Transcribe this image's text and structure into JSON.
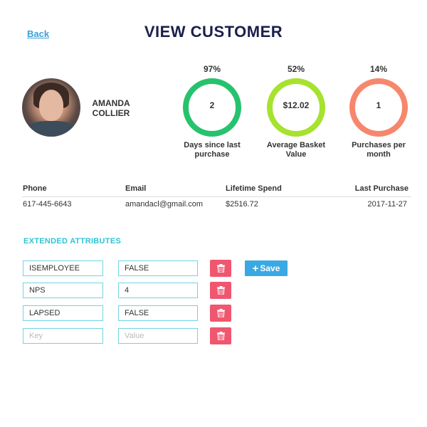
{
  "header": {
    "back_label": "Back",
    "title": "VIEW CUSTOMER"
  },
  "customer": {
    "name": "AMANDA COLLIER"
  },
  "stats": [
    {
      "percent": "97%",
      "value": "2",
      "label": "Days since last purchase",
      "ring_color": "#27c26e"
    },
    {
      "percent": "52%",
      "value": "$12.02",
      "label": "Average Basket Value",
      "ring_color": "#a6e22e"
    },
    {
      "percent": "14%",
      "value": "1",
      "label": "Purchases per month",
      "ring_color": "#f7876c"
    }
  ],
  "info": {
    "headers": {
      "phone": "Phone",
      "email": "Email",
      "lifetime_spend": "Lifetime Spend",
      "last_purchase": "Last Purchase"
    },
    "values": {
      "phone": "617-445-6643",
      "email": "amandacl@gmail.com",
      "lifetime_spend": "$2516.72",
      "last_purchase": "2017-11-27"
    }
  },
  "extended": {
    "title": "EXTENDED ATTRIBUTES",
    "rows": [
      {
        "key": "ISEMPLOYEE",
        "value": "FALSE"
      },
      {
        "key": "NPS",
        "value": "4"
      },
      {
        "key": "LAPSED",
        "value": "FALSE"
      }
    ],
    "new_row": {
      "key_placeholder": "Key",
      "value_placeholder": "Value"
    },
    "save_label": "Save"
  },
  "colors": {
    "accent_blue": "#3aa9e3",
    "delete_red": "#f0566f",
    "section_teal": "#2ec4d6",
    "title_navy": "#1b1f4b"
  },
  "icons": {
    "back": "link",
    "delete": "trash-icon",
    "save": "plus-icon"
  }
}
